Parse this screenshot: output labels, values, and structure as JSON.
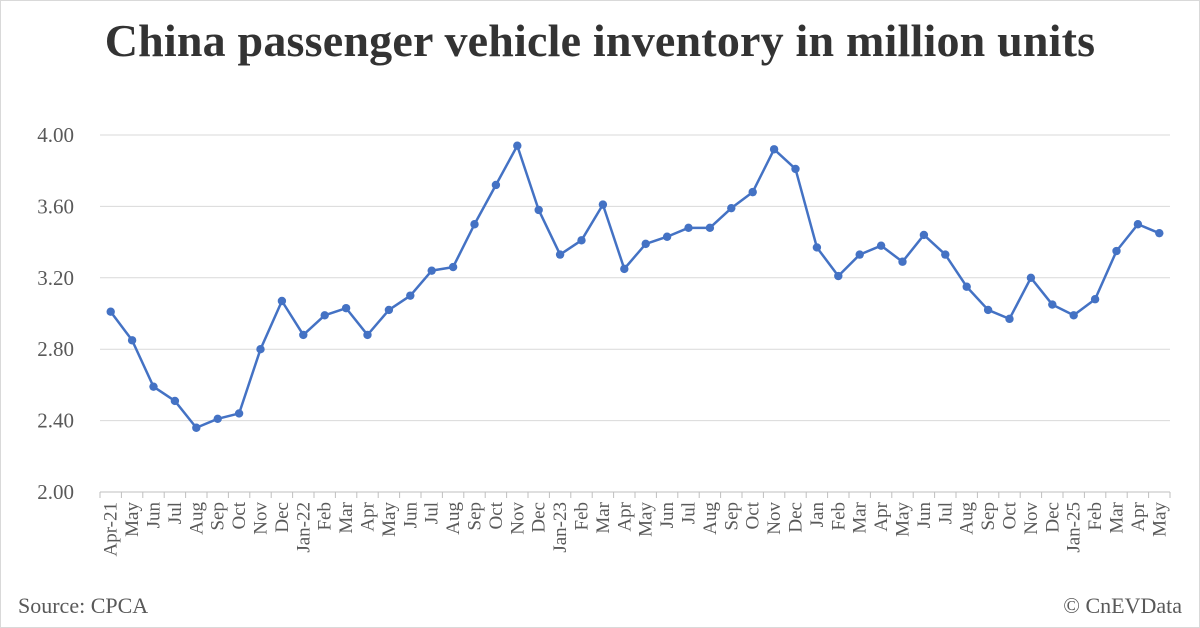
{
  "title": "China passenger vehicle inventory in million units",
  "footer": {
    "source": "Source: CPCA",
    "credit": "© CnEVData"
  },
  "colors": {
    "series": "#4472C4",
    "grid": "#d9d9d9",
    "text": "#595959",
    "title": "#333333"
  },
  "chart_data": {
    "type": "line",
    "title": "China passenger vehicle inventory in million units",
    "xlabel": "",
    "ylabel": "",
    "ylim": [
      2.0,
      4.0
    ],
    "yticks": [
      "2.00",
      "2.40",
      "2.80",
      "3.20",
      "3.60",
      "4.00"
    ],
    "grid": true,
    "legend": "none",
    "categories": [
      "Apr-21",
      "May",
      "Jun",
      "Jul",
      "Aug",
      "Sep",
      "Oct",
      "Nov",
      "Dec",
      "Jan-22",
      "Feb",
      "Mar",
      "Apr",
      "May",
      "Jun",
      "Jul",
      "Aug",
      "Sep",
      "Oct",
      "Nov",
      "Dec",
      "Jan-23",
      "Feb",
      "Mar",
      "Apr",
      "May",
      "Jun",
      "Jul",
      "Aug",
      "Sep",
      "Oct",
      "Nov",
      "Dec",
      "Jan",
      "Feb",
      "Mar",
      "Apr",
      "May",
      "Jun",
      "Jul",
      "Aug",
      "Sep",
      "Oct",
      "Nov",
      "Dec",
      "Jan-25",
      "Feb",
      "Mar",
      "Apr",
      "May"
    ],
    "series": [
      {
        "values": [
          3.01,
          2.85,
          2.59,
          2.51,
          2.36,
          2.41,
          2.44,
          2.8,
          3.07,
          2.88,
          2.99,
          3.03,
          2.88,
          3.02,
          3.1,
          3.24,
          3.26,
          3.5,
          3.72,
          3.94,
          3.58,
          3.33,
          3.41,
          3.61,
          3.25,
          3.39,
          3.43,
          3.48,
          3.48,
          3.59,
          3.68,
          3.92,
          3.81,
          3.37,
          3.21,
          3.33,
          3.38,
          3.29,
          3.44,
          3.33,
          3.15,
          3.02,
          2.97,
          3.2,
          3.05,
          2.99,
          3.08,
          3.35,
          3.5,
          3.45
        ]
      }
    ]
  }
}
